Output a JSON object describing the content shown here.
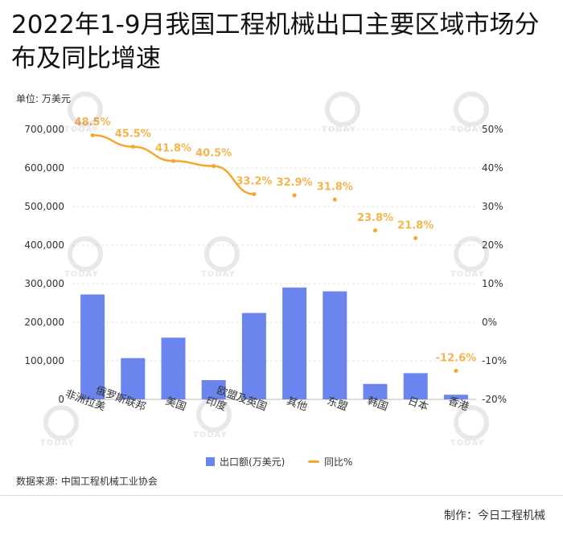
{
  "title": "2022年1-9月我国工程机械出口主要区域市场分布及同比增速",
  "unit_label": "单位: 万美元",
  "source": "数据来源: 中国工程机械工业协会",
  "credit": "制作：今日工程机械",
  "watermark_text": "TODAY",
  "colors": {
    "bar": "#6a86ee",
    "line": "#f5a72e"
  },
  "chart_data": {
    "type": "bar",
    "categories": [
      "非洲拉美",
      "俄罗斯联邦",
      "美国",
      "印度",
      "欧盟及英国",
      "其他",
      "东盟",
      "韩国",
      "日本",
      "香港"
    ],
    "series": [
      {
        "name": "出口额(万美元)",
        "type": "bar",
        "axis": "left",
        "values": [
          272000,
          107000,
          160000,
          50000,
          224000,
          290000,
          280000,
          40000,
          68000,
          12000
        ]
      },
      {
        "name": "同比%",
        "type": "line",
        "axis": "right",
        "values": [
          48.5,
          45.5,
          41.8,
          40.5,
          33.2,
          32.9,
          31.8,
          23.8,
          21.8,
          -12.6
        ],
        "labels": [
          "48.5%",
          "45.5%",
          "41.8%",
          "40.5%",
          "33.2%",
          "32.9%",
          "31.8%",
          "23.8%",
          "21.8%",
          "-12.6%"
        ]
      }
    ],
    "y_left": {
      "min": 0,
      "max": 700000,
      "ticks": [
        "0",
        "100,000",
        "200,000",
        "300,000",
        "400,000",
        "500,000",
        "600,000",
        "700,000"
      ]
    },
    "y_right": {
      "min": -20,
      "max": 50,
      "ticks": [
        "-20%",
        "-10%",
        "0%",
        "10%",
        "20%",
        "30%",
        "40%",
        "50%"
      ]
    },
    "grid": true,
    "legend_position": "bottom"
  },
  "legend": {
    "bar_label": "出口额(万美元)",
    "line_label": "同比%"
  }
}
